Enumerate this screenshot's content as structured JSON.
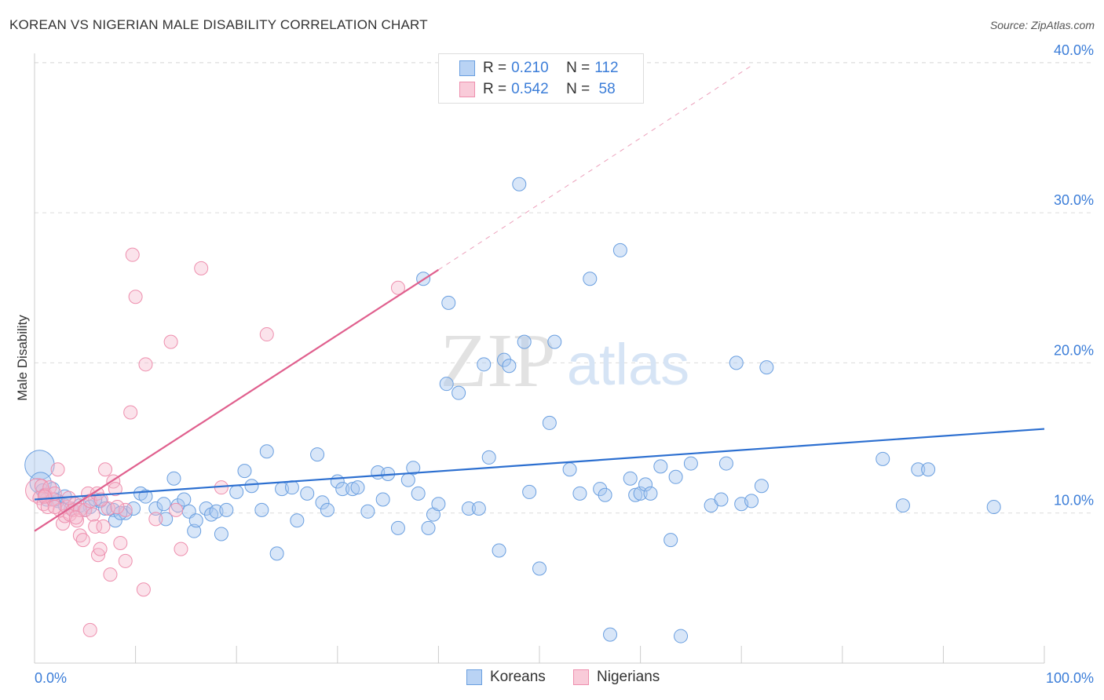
{
  "title": "KOREAN VS NIGERIAN MALE DISABILITY CORRELATION CHART",
  "source": "Source: ZipAtlas.com",
  "watermark": {
    "zip": "ZIP",
    "atlas": "atlas"
  },
  "legend": {
    "koreans": {
      "r_label": "R = ",
      "r_value": "0.210",
      "n_label": "N = ",
      "n_value": "112"
    },
    "nigerians": {
      "r_label": "R = ",
      "r_value": "0.542",
      "n_label": "N = ",
      "n_value": " 58"
    }
  },
  "bottom_legend": {
    "koreans": "Koreans",
    "nigerians": "Nigerians"
  },
  "colors": {
    "korean_fill": "#a8c8f0",
    "korean_stroke": "#6a9fe0",
    "korean_line": "#2c6fd0",
    "nigerian_fill": "#f6b8cc",
    "nigerian_stroke": "#ee8fae",
    "nigerian_line": "#e0608e",
    "axis_label": "#3b7dd8"
  },
  "chart_data": {
    "type": "scatter",
    "title": "KOREAN VS NIGERIAN MALE DISABILITY CORRELATION CHART",
    "xlabel": "",
    "ylabel": "Male Disability",
    "xlim": [
      0,
      100
    ],
    "ylim": [
      0,
      40
    ],
    "x_tick_labels": [
      "0.0%",
      "100.0%"
    ],
    "y_ticks": [
      10,
      20,
      30,
      40
    ],
    "y_tick_labels": [
      "10.0%",
      "20.0%",
      "30.0%",
      "40.0%"
    ],
    "grid": "horizontal dashed",
    "series": [
      {
        "name": "Koreans",
        "r": 0.21,
        "n": 112,
        "trend": {
          "x": [
            0,
            100
          ],
          "y": [
            10.9,
            15.6
          ],
          "style": "solid"
        },
        "points": [
          {
            "x": 0.5,
            "y": 13.2,
            "s": 2.2
          },
          {
            "x": 0.6,
            "y": 12.0,
            "s": 1.6
          },
          {
            "x": 0.8,
            "y": 11.5
          },
          {
            "x": 1.0,
            "y": 11.2
          },
          {
            "x": 1.2,
            "y": 10.9
          },
          {
            "x": 1.8,
            "y": 11.6
          },
          {
            "x": 2.3,
            "y": 10.8
          },
          {
            "x": 3.0,
            "y": 10.5
          },
          {
            "x": 3.6,
            "y": 10.3
          },
          {
            "x": 4.5,
            "y": 10.5
          },
          {
            "x": 5.5,
            "y": 10.4
          },
          {
            "x": 6.5,
            "y": 10.8
          },
          {
            "x": 7.0,
            "y": 10.3
          },
          {
            "x": 7.8,
            "y": 10.2
          },
          {
            "x": 8.0,
            "y": 9.5
          },
          {
            "x": 9.0,
            "y": 10.0
          },
          {
            "x": 9.8,
            "y": 10.3
          },
          {
            "x": 10.5,
            "y": 11.3
          },
          {
            "x": 11.0,
            "y": 11.1
          },
          {
            "x": 12.0,
            "y": 10.3
          },
          {
            "x": 12.8,
            "y": 10.6
          },
          {
            "x": 13.0,
            "y": 9.6
          },
          {
            "x": 13.8,
            "y": 12.3
          },
          {
            "x": 14.2,
            "y": 10.5
          },
          {
            "x": 14.8,
            "y": 10.9
          },
          {
            "x": 15.3,
            "y": 10.1
          },
          {
            "x": 15.8,
            "y": 8.8
          },
          {
            "x": 16.0,
            "y": 9.5
          },
          {
            "x": 17.0,
            "y": 10.3
          },
          {
            "x": 17.5,
            "y": 9.9
          },
          {
            "x": 18.0,
            "y": 10.1
          },
          {
            "x": 18.5,
            "y": 8.6
          },
          {
            "x": 19.0,
            "y": 10.2
          },
          {
            "x": 20.0,
            "y": 11.4
          },
          {
            "x": 20.8,
            "y": 12.8
          },
          {
            "x": 21.5,
            "y": 11.8
          },
          {
            "x": 22.5,
            "y": 10.2
          },
          {
            "x": 23.0,
            "y": 14.1
          },
          {
            "x": 24.0,
            "y": 7.3
          },
          {
            "x": 24.5,
            "y": 11.6
          },
          {
            "x": 25.5,
            "y": 11.7
          },
          {
            "x": 26.0,
            "y": 9.5
          },
          {
            "x": 27.0,
            "y": 11.3
          },
          {
            "x": 28.0,
            "y": 13.9
          },
          {
            "x": 28.5,
            "y": 10.7
          },
          {
            "x": 29.0,
            "y": 10.2
          },
          {
            "x": 30.0,
            "y": 12.1
          },
          {
            "x": 30.5,
            "y": 11.6
          },
          {
            "x": 31.5,
            "y": 11.6
          },
          {
            "x": 32.0,
            "y": 11.7
          },
          {
            "x": 33.0,
            "y": 10.1
          },
          {
            "x": 34.0,
            "y": 12.7
          },
          {
            "x": 34.5,
            "y": 10.9
          },
          {
            "x": 35.0,
            "y": 12.6
          },
          {
            "x": 36.0,
            "y": 9.0
          },
          {
            "x": 37.0,
            "y": 12.2
          },
          {
            "x": 37.5,
            "y": 13.0
          },
          {
            "x": 38.0,
            "y": 11.3
          },
          {
            "x": 38.5,
            "y": 25.6
          },
          {
            "x": 39.0,
            "y": 9.0
          },
          {
            "x": 39.5,
            "y": 9.9
          },
          {
            "x": 40.0,
            "y": 10.6
          },
          {
            "x": 40.8,
            "y": 18.6
          },
          {
            "x": 41.0,
            "y": 24.0
          },
          {
            "x": 42.0,
            "y": 18.0
          },
          {
            "x": 43.0,
            "y": 10.3
          },
          {
            "x": 44.0,
            "y": 10.3
          },
          {
            "x": 44.5,
            "y": 19.9
          },
          {
            "x": 45.0,
            "y": 13.7
          },
          {
            "x": 46.0,
            "y": 7.5
          },
          {
            "x": 46.5,
            "y": 20.2
          },
          {
            "x": 47.0,
            "y": 19.8
          },
          {
            "x": 48.0,
            "y": 31.9
          },
          {
            "x": 48.5,
            "y": 21.4
          },
          {
            "x": 49.0,
            "y": 11.4
          },
          {
            "x": 50.0,
            "y": 6.3
          },
          {
            "x": 51.0,
            "y": 16.0
          },
          {
            "x": 51.5,
            "y": 21.4
          },
          {
            "x": 53.0,
            "y": 12.9
          },
          {
            "x": 54.0,
            "y": 11.3
          },
          {
            "x": 55.0,
            "y": 25.6
          },
          {
            "x": 56.0,
            "y": 11.6
          },
          {
            "x": 56.5,
            "y": 11.2
          },
          {
            "x": 57.0,
            "y": 1.9
          },
          {
            "x": 58.0,
            "y": 27.5
          },
          {
            "x": 59.0,
            "y": 12.3
          },
          {
            "x": 59.5,
            "y": 11.2
          },
          {
            "x": 60.0,
            "y": 11.3
          },
          {
            "x": 60.5,
            "y": 11.9
          },
          {
            "x": 61.0,
            "y": 11.3
          },
          {
            "x": 62.0,
            "y": 13.1
          },
          {
            "x": 63.0,
            "y": 8.2
          },
          {
            "x": 63.5,
            "y": 12.4
          },
          {
            "x": 64.0,
            "y": 1.8
          },
          {
            "x": 65.0,
            "y": 13.3
          },
          {
            "x": 67.0,
            "y": 10.5
          },
          {
            "x": 68.0,
            "y": 10.9
          },
          {
            "x": 68.5,
            "y": 13.3
          },
          {
            "x": 69.5,
            "y": 20.0
          },
          {
            "x": 70.0,
            "y": 10.6
          },
          {
            "x": 71.0,
            "y": 10.8
          },
          {
            "x": 72.0,
            "y": 11.8
          },
          {
            "x": 72.5,
            "y": 19.7
          },
          {
            "x": 84.0,
            "y": 13.6
          },
          {
            "x": 86.0,
            "y": 10.5
          },
          {
            "x": 87.5,
            "y": 12.9
          },
          {
            "x": 88.5,
            "y": 12.9
          },
          {
            "x": 95.0,
            "y": 10.4
          },
          {
            "x": 2.0,
            "y": 10.9
          },
          {
            "x": 5.0,
            "y": 10.2
          },
          {
            "x": 6.0,
            "y": 10.9
          },
          {
            "x": 8.5,
            "y": 10.0
          },
          {
            "x": 3.0,
            "y": 11.1
          }
        ]
      },
      {
        "name": "Nigerians",
        "r": 0.542,
        "n": 58,
        "trend": {
          "x": [
            0,
            40
          ],
          "y": [
            8.8,
            26.2
          ],
          "style": "solid",
          "extension": {
            "x": [
              40,
              71
            ],
            "y": [
              26.2,
              39.8
            ],
            "style": "dashed"
          }
        },
        "points": [
          {
            "x": 0.3,
            "y": 11.5,
            "s": 1.8
          },
          {
            "x": 0.5,
            "y": 11.0
          },
          {
            "x": 0.7,
            "y": 11.8
          },
          {
            "x": 0.9,
            "y": 10.6
          },
          {
            "x": 1.1,
            "y": 11.2
          },
          {
            "x": 1.3,
            "y": 10.4
          },
          {
            "x": 1.5,
            "y": 11.7
          },
          {
            "x": 1.8,
            "y": 10.9
          },
          {
            "x": 2.0,
            "y": 11.3
          },
          {
            "x": 2.3,
            "y": 12.9
          },
          {
            "x": 2.5,
            "y": 10.2
          },
          {
            "x": 2.8,
            "y": 9.3
          },
          {
            "x": 3.0,
            "y": 9.8
          },
          {
            "x": 3.2,
            "y": 10.4
          },
          {
            "x": 3.5,
            "y": 9.9
          },
          {
            "x": 3.8,
            "y": 10.2
          },
          {
            "x": 4.0,
            "y": 10.6
          },
          {
            "x": 4.2,
            "y": 9.5
          },
          {
            "x": 4.5,
            "y": 10.2
          },
          {
            "x": 4.5,
            "y": 8.5
          },
          {
            "x": 4.8,
            "y": 8.2
          },
          {
            "x": 5.0,
            "y": 10.2
          },
          {
            "x": 5.3,
            "y": 11.3
          },
          {
            "x": 5.5,
            "y": 10.8
          },
          {
            "x": 5.5,
            "y": 2.2
          },
          {
            "x": 5.8,
            "y": 9.9
          },
          {
            "x": 6.0,
            "y": 9.1
          },
          {
            "x": 6.2,
            "y": 11.3
          },
          {
            "x": 6.3,
            "y": 7.2
          },
          {
            "x": 6.5,
            "y": 7.6
          },
          {
            "x": 6.8,
            "y": 9.1
          },
          {
            "x": 7.0,
            "y": 12.9
          },
          {
            "x": 7.3,
            "y": 10.3
          },
          {
            "x": 7.5,
            "y": 5.9
          },
          {
            "x": 7.8,
            "y": 12.1
          },
          {
            "x": 8.0,
            "y": 11.6
          },
          {
            "x": 8.5,
            "y": 8.0
          },
          {
            "x": 9.0,
            "y": 10.2
          },
          {
            "x": 9.0,
            "y": 6.8
          },
          {
            "x": 9.5,
            "y": 16.7
          },
          {
            "x": 9.7,
            "y": 27.2
          },
          {
            "x": 10.0,
            "y": 24.4
          },
          {
            "x": 10.8,
            "y": 4.9
          },
          {
            "x": 11.0,
            "y": 19.9
          },
          {
            "x": 12.0,
            "y": 9.6
          },
          {
            "x": 13.5,
            "y": 21.4
          },
          {
            "x": 14.0,
            "y": 10.2
          },
          {
            "x": 14.5,
            "y": 7.6
          },
          {
            "x": 16.5,
            "y": 26.3
          },
          {
            "x": 18.5,
            "y": 11.7
          },
          {
            "x": 23.0,
            "y": 21.9
          },
          {
            "x": 36.0,
            "y": 25.0
          },
          {
            "x": 1.0,
            "y": 11.1
          },
          {
            "x": 2.0,
            "y": 10.4
          },
          {
            "x": 3.4,
            "y": 11.0
          },
          {
            "x": 4.1,
            "y": 9.7
          },
          {
            "x": 6.6,
            "y": 10.9
          },
          {
            "x": 8.2,
            "y": 10.4
          }
        ]
      }
    ]
  }
}
